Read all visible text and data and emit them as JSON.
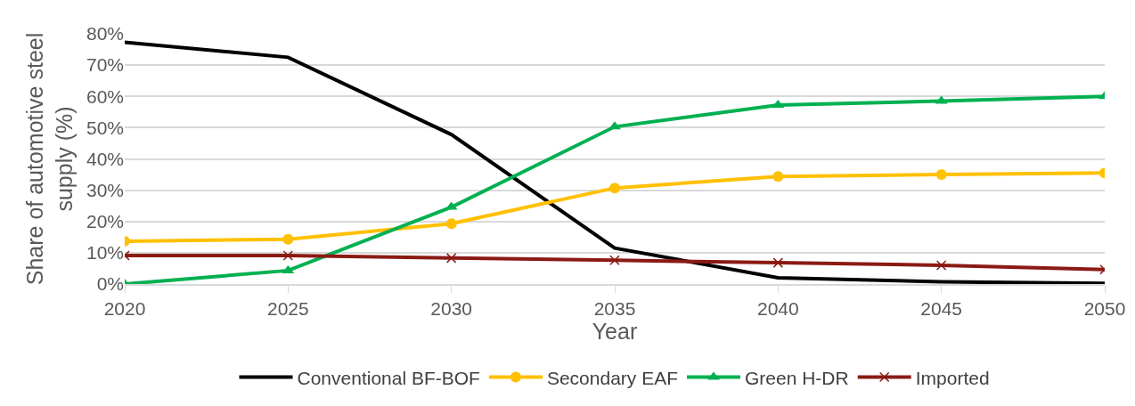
{
  "chart_data": {
    "type": "line",
    "xlabel": "Year",
    "ylabel": "Share of automotive steel\nsupply (%)",
    "x": [
      2020,
      2025,
      2030,
      2035,
      2040,
      2045,
      2050
    ],
    "series": [
      {
        "name": "Conventional BF-BOF",
        "color": "#000000",
        "marker": "none",
        "values": [
          77.3,
          72.5,
          47.8,
          11.5,
          2,
          0.7,
          0.2
        ]
      },
      {
        "name": "Secondary EAF",
        "color": "#ffc000",
        "marker": "circle",
        "values": [
          13.7,
          14.3,
          19.3,
          30.7,
          34.4,
          35,
          35.5
        ]
      },
      {
        "name": "Green H-DR",
        "color": "#00b050",
        "marker": "triangle",
        "values": [
          0,
          4.3,
          24.6,
          50.3,
          57.2,
          58.5,
          60
        ]
      },
      {
        "name": "Imported",
        "color": "#8b1a14",
        "marker": "cross",
        "values": [
          9.1,
          9.1,
          8.3,
          7.6,
          6.8,
          6,
          4.6
        ]
      }
    ],
    "xlim": [
      2020,
      2050
    ],
    "xticks": [
      2020,
      2025,
      2030,
      2035,
      2040,
      2045,
      2050
    ],
    "ylim": [
      0,
      80
    ],
    "yticks": [
      {
        "value": 0,
        "label": "0%"
      },
      {
        "value": 10,
        "label": "10%"
      },
      {
        "value": 20,
        "label": "20%"
      },
      {
        "value": 30,
        "label": "30%"
      },
      {
        "value": 40,
        "label": "40%"
      },
      {
        "value": 50,
        "label": "50%"
      },
      {
        "value": 60,
        "label": "60%"
      },
      {
        "value": 70,
        "label": "70%"
      },
      {
        "value": 80,
        "label": "80%"
      }
    ],
    "grid": "y",
    "legend": "bottom",
    "line_style": "solid"
  }
}
